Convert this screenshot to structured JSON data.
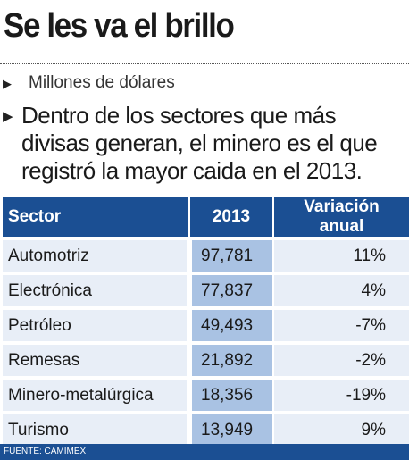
{
  "header": {
    "title": "Se les va el brillo",
    "subtitle": "Millones de dólares",
    "description": "Dentro de los sectores que más divisas generan, el minero es el que registró la mayor caida en el 2013."
  },
  "chart_data": {
    "type": "table",
    "columns": [
      "Sector",
      "2013",
      "Variación anual"
    ],
    "rows": [
      {
        "sector": "Automotriz",
        "value": "97,781",
        "change": "11%"
      },
      {
        "sector": "Electrónica",
        "value": "77,837",
        "change": "4%"
      },
      {
        "sector": "Petróleo",
        "value": "49,493",
        "change": "-7%"
      },
      {
        "sector": "Remesas",
        "value": "21,892",
        "change": "-2%"
      },
      {
        "sector": "Minero-metalúrgica",
        "value": "18,356",
        "change": "-19%"
      },
      {
        "sector": "Turismo",
        "value": "13,949",
        "change": "9%"
      }
    ],
    "values": [
      97781,
      77837,
      49493,
      21892,
      18356,
      13949
    ],
    "changes_pct": [
      11,
      4,
      -7,
      -2,
      -19,
      9
    ]
  },
  "footer": {
    "source": "FUENTE: CAMIMEX"
  },
  "colors": {
    "header_bg": "#1b4f93",
    "value_cell_bg": "#a9c2e3",
    "row_bg": "#e8eef7"
  }
}
